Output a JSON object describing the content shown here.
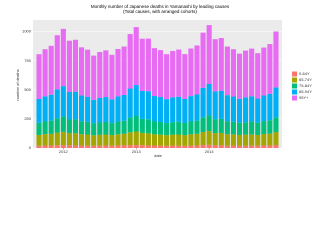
{
  "chart_data": {
    "type": "stacked_bar",
    "title": "Monthly number of Japanese deaths in Yamanashi by leading causes",
    "subtitle": "(Total causes, with arranged cohorts)",
    "x_label": "date",
    "y_label": "number of deaths",
    "categories": [
      null,
      null,
      null,
      null,
      "2012",
      null,
      null,
      null,
      null,
      null,
      null,
      null,
      null,
      null,
      null,
      null,
      "2013",
      null,
      null,
      null,
      null,
      null,
      null,
      null,
      null,
      null,
      null,
      null,
      "2014",
      null,
      null,
      null,
      null,
      null,
      null,
      null,
      null,
      null,
      null,
      null
    ],
    "series": [
      {
        "name": "0-64Y",
        "color": "#F8766D",
        "values": [
          20,
          22,
          21,
          24,
          25,
          23,
          22,
          21,
          20,
          19,
          20,
          21,
          20,
          22,
          23,
          25,
          26,
          24,
          22,
          21,
          20,
          19,
          21,
          20,
          19,
          21,
          22,
          26,
          27,
          23,
          23,
          20,
          21,
          20,
          19,
          20,
          20,
          22,
          22,
          25
        ]
      },
      {
        "name": "65-74Y",
        "color": "#A3A500",
        "values": [
          92,
          97,
          100,
          108,
          114,
          104,
          105,
          98,
          96,
          90,
          93,
          95,
          91,
          96,
          99,
          110,
          116,
          106,
          104,
          97,
          95,
          91,
          94,
          96,
          92,
          97,
          100,
          111,
          118,
          105,
          106,
          99,
          96,
          92,
          95,
          97,
          92,
          98,
          101,
          112
        ]
      },
      {
        "name": "75-84Y",
        "color": "#00BF7D",
        "values": [
          104,
          109,
          113,
          124,
          131,
          118,
          119,
          111,
          109,
          102,
          106,
          108,
          103,
          109,
          112,
          126,
          133,
          120,
          121,
          110,
          108,
          104,
          107,
          109,
          104,
          110,
          113,
          127,
          135,
          120,
          121,
          112,
          109,
          104,
          108,
          110,
          105,
          111,
          115,
          128
        ]
      },
      {
        "name": "85-94Y",
        "color": "#00B0F6",
        "values": [
          205,
          216,
          224,
          248,
          262,
          236,
          238,
          221,
          216,
          203,
          211,
          214,
          204,
          217,
          222,
          250,
          266,
          240,
          241,
          219,
          215,
          206,
          213,
          216,
          206,
          218,
          225,
          253,
          270,
          239,
          242,
          223,
          217,
          207,
          214,
          218,
          208,
          220,
          228,
          256
        ]
      },
      {
        "name": "95Y+",
        "color": "#E76BF3",
        "values": [
          385,
          405,
          420,
          465,
          492,
          441,
          446,
          414,
          404,
          380,
          395,
          401,
          383,
          407,
          416,
          468,
          498,
          449,
          452,
          411,
          403,
          386,
          399,
          405,
          386,
          409,
          421,
          474,
          506,
          448,
          453,
          418,
          406,
          388,
          401,
          409,
          390,
          412,
          427,
          480
        ]
      }
    ],
    "ylim": [
      0,
      1100
    ],
    "yticks": [
      0,
      250,
      500,
      750,
      1000
    ],
    "grid": true
  }
}
